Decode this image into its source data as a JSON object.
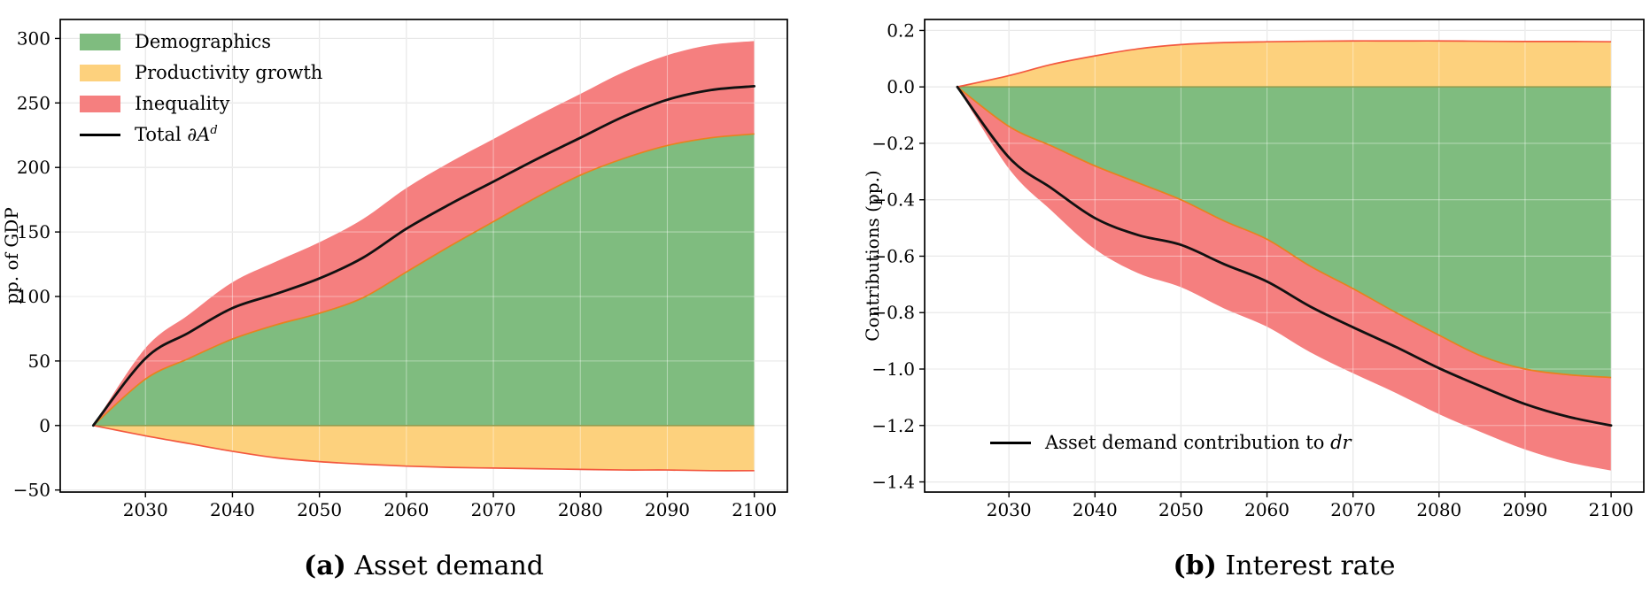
{
  "figure": {
    "captions": {
      "a": {
        "tag": "(a)",
        "text": " Asset demand"
      },
      "b": {
        "tag": "(b)",
        "text": " Interest rate"
      }
    }
  },
  "colors": {
    "demographics_fill": "#7fbc7f",
    "productivity_fill": "#fdd17d",
    "inequality_fill": "#f57f7f",
    "demographics_edge": "#e8821e",
    "productivity_edge": "#f3583f",
    "zero_line": "#8f9e52",
    "total_line": "#111111",
    "grid": "#d9d9d9",
    "frame": "#000000"
  },
  "legend_a": {
    "items": [
      {
        "label": "Demographics",
        "swatch_color": "#7fbc7f"
      },
      {
        "label": "Productivity growth",
        "swatch_color": "#fdd17d"
      },
      {
        "label": "Inequality",
        "swatch_color": "#f57f7f"
      }
    ],
    "total_item": {
      "prefix": "Total ∂",
      "symbol": "A",
      "sup": "d"
    }
  },
  "legend_b": {
    "prefix": "Asset demand contribution to ",
    "italic": "dr"
  },
  "chart_data": [
    {
      "type": "area",
      "panel": "a",
      "title": "(a) Asset demand",
      "xlabel": "",
      "ylabel": "pp. of GDP",
      "x": [
        2024,
        2030,
        2035,
        2040,
        2045,
        2050,
        2055,
        2060,
        2065,
        2070,
        2075,
        2080,
        2085,
        2090,
        2095,
        2100
      ],
      "series": [
        {
          "name": "Demographics",
          "values": [
            0,
            36,
            52,
            67,
            78,
            87,
            99,
            119,
            139,
            158,
            177,
            194,
            207,
            217,
            223,
            226
          ]
        },
        {
          "name": "Productivity growth",
          "values": [
            0,
            -8,
            -14,
            -20,
            -25,
            -28,
            -30,
            -31.5,
            -32.5,
            -33,
            -33.5,
            -34,
            -34.5,
            -34.5,
            -35,
            -35
          ]
        },
        {
          "name": "Inequality",
          "values": [
            0,
            24,
            34,
            44,
            49,
            55,
            61,
            65,
            65,
            64,
            63,
            63,
            67,
            70,
            72,
            72
          ]
        }
      ],
      "total": {
        "name": "Total ∂A^d",
        "values": [
          0,
          52,
          72,
          91,
          102,
          114,
          130,
          152.5,
          171.5,
          189,
          206.5,
          223,
          239.5,
          252.5,
          260,
          263
        ]
      },
      "xlim": [
        2020.2,
        2103.8
      ],
      "ylim": [
        -51.6,
        314.7
      ],
      "xticks": [
        2030,
        2040,
        2050,
        2060,
        2070,
        2080,
        2090,
        2100
      ],
      "xtick_labels": [
        "2030",
        "2040",
        "2050",
        "2060",
        "2070",
        "2080",
        "2090",
        "2100"
      ],
      "yticks": [
        -50,
        0,
        50,
        100,
        150,
        200,
        250,
        300
      ],
      "ytick_labels": [
        "−50",
        "0",
        "50",
        "100",
        "150",
        "200",
        "250",
        "300"
      ],
      "grid": true,
      "legend_position": "upper left"
    },
    {
      "type": "area",
      "panel": "b",
      "title": "(b) Interest rate",
      "xlabel": "",
      "ylabel": "Contributions (pp.)",
      "x": [
        2024,
        2030,
        2035,
        2040,
        2045,
        2050,
        2055,
        2060,
        2065,
        2070,
        2075,
        2080,
        2085,
        2090,
        2095,
        2100
      ],
      "series": [
        {
          "name": "Demographics",
          "values": [
            0,
            -0.14,
            -0.21,
            -0.28,
            -0.34,
            -0.4,
            -0.475,
            -0.54,
            -0.635,
            -0.715,
            -0.8,
            -0.88,
            -0.955,
            -1.0,
            -1.02,
            -1.03
          ]
        },
        {
          "name": "Productivity growth",
          "values": [
            0,
            0.04,
            0.08,
            0.11,
            0.135,
            0.15,
            0.157,
            0.16,
            0.162,
            0.163,
            0.163,
            0.163,
            0.162,
            0.161,
            0.161,
            0.16
          ]
        },
        {
          "name": "Inequality",
          "values": [
            0,
            -0.15,
            -0.23,
            -0.295,
            -0.32,
            -0.31,
            -0.31,
            -0.31,
            -0.305,
            -0.3,
            -0.285,
            -0.28,
            -0.27,
            -0.285,
            -0.31,
            -0.33
          ]
        }
      ],
      "total": {
        "name": "Asset demand contribution to dr",
        "values": [
          0,
          -0.25,
          -0.36,
          -0.465,
          -0.525,
          -0.56,
          -0.628,
          -0.69,
          -0.778,
          -0.852,
          -0.922,
          -0.997,
          -1.063,
          -1.124,
          -1.169,
          -1.2
        ]
      },
      "xlim": [
        2020.2,
        2103.8
      ],
      "ylim": [
        -1.436,
        0.239
      ],
      "xticks": [
        2030,
        2040,
        2050,
        2060,
        2070,
        2080,
        2090,
        2100
      ],
      "xtick_labels": [
        "2030",
        "2040",
        "2050",
        "2060",
        "2070",
        "2080",
        "2090",
        "2100"
      ],
      "yticks": [
        -1.4,
        -1.2,
        -1.0,
        -0.8,
        -0.6,
        -0.4,
        -0.2,
        0.0,
        0.2
      ],
      "ytick_labels": [
        "−1.4",
        "−1.2",
        "−1.0",
        "−0.8",
        "−0.6",
        "−0.4",
        "−0.2",
        "0.0",
        "0.2"
      ],
      "grid": true,
      "legend_position": "lower left"
    }
  ]
}
